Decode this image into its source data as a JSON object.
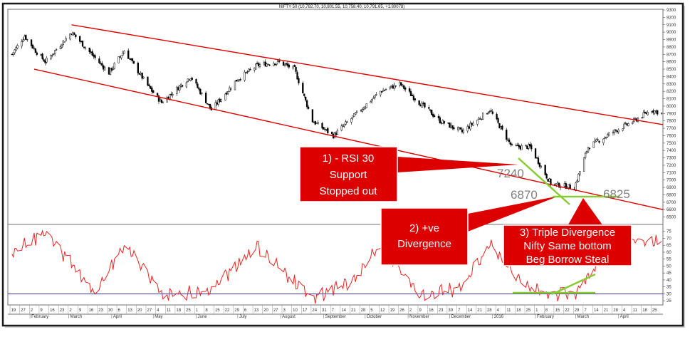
{
  "title": "NIFTY 50 (10,782.70, 10,801.55, 10,758.40, 10,791.65, +1.80078)",
  "chart_data": [
    {
      "type": "candlestick",
      "ylim": [
        6400,
        9300
      ],
      "y_ticks": [
        9300,
        9200,
        9100,
        9000,
        8900,
        8800,
        8700,
        8600,
        8500,
        8400,
        8300,
        8200,
        8100,
        8000,
        7900,
        7800,
        7700,
        7600,
        7500,
        7400,
        7300,
        7200,
        7100,
        7000,
        6900,
        6800,
        6700,
        6600,
        6500
      ],
      "approx_close_path": [
        {
          "date": "2015-01-19",
          "close": 8700
        },
        {
          "date": "2015-01-28",
          "close": 8950
        },
        {
          "date": "2015-02-05",
          "close": 8750
        },
        {
          "date": "2015-02-12",
          "close": 8600
        },
        {
          "date": "2015-03-03",
          "close": 9000
        },
        {
          "date": "2015-03-20",
          "close": 8650
        },
        {
          "date": "2015-03-30",
          "close": 8450
        },
        {
          "date": "2015-04-10",
          "close": 8750
        },
        {
          "date": "2015-04-28",
          "close": 8250
        },
        {
          "date": "2015-05-07",
          "close": 8050
        },
        {
          "date": "2015-05-28",
          "close": 8400
        },
        {
          "date": "2015-06-12",
          "close": 7950
        },
        {
          "date": "2015-06-30",
          "close": 8350
        },
        {
          "date": "2015-07-15",
          "close": 8550
        },
        {
          "date": "2015-07-30",
          "close": 8600
        },
        {
          "date": "2015-08-11",
          "close": 8500
        },
        {
          "date": "2015-08-24",
          "close": 7800
        },
        {
          "date": "2015-09-08",
          "close": 7600
        },
        {
          "date": "2015-09-22",
          "close": 7850
        },
        {
          "date": "2015-10-12",
          "close": 8200
        },
        {
          "date": "2015-10-26",
          "close": 8300
        },
        {
          "date": "2015-11-09",
          "close": 8050
        },
        {
          "date": "2015-11-24",
          "close": 7800
        },
        {
          "date": "2015-12-10",
          "close": 7650
        },
        {
          "date": "2015-12-30",
          "close": 7950
        },
        {
          "date": "2016-01-15",
          "close": 7450
        },
        {
          "date": "2016-01-28",
          "close": 7450
        },
        {
          "date": "2016-02-12",
          "close": 6950
        },
        {
          "date": "2016-02-29",
          "close": 6900
        },
        {
          "date": "2016-03-10",
          "close": 7450
        },
        {
          "date": "2016-03-28",
          "close": 7650
        },
        {
          "date": "2016-04-12",
          "close": 7800
        },
        {
          "date": "2016-04-25",
          "close": 7950
        },
        {
          "date": "2016-05-02",
          "close": 7900
        }
      ],
      "annotations": [
        {
          "type": "trendline",
          "label": "upper channel",
          "from": {
            "date": "2015-03-03",
            "close": 9100
          },
          "to": {
            "date": "2016-05-03",
            "close": 7750
          }
        },
        {
          "type": "trendline",
          "label": "lower channel",
          "from": {
            "date": "2015-02-04",
            "close": 8500
          },
          "to": {
            "date": "2016-05-03",
            "close": 6600
          }
        },
        {
          "type": "level",
          "text": "7240",
          "value": 7240
        },
        {
          "type": "level",
          "text": "6870",
          "value": 6870
        },
        {
          "type": "level",
          "text": "6825",
          "value": 6825
        }
      ]
    },
    {
      "type": "line",
      "indicator": "RSI",
      "ylim": [
        22,
        80
      ],
      "y_ticks": [
        75,
        70,
        65,
        60,
        55,
        50,
        45,
        40,
        35,
        30,
        25
      ],
      "reference_line": 30,
      "approx_path": [
        {
          "date": "2015-01-19",
          "rsi": 60
        },
        {
          "date": "2015-02-12",
          "rsi": 75
        },
        {
          "date": "2015-03-20",
          "rsi": 31
        },
        {
          "date": "2015-04-10",
          "rsi": 65
        },
        {
          "date": "2015-05-07",
          "rsi": 30
        },
        {
          "date": "2015-06-12",
          "rsi": 32
        },
        {
          "date": "2015-07-15",
          "rsi": 65
        },
        {
          "date": "2015-08-24",
          "rsi": 26
        },
        {
          "date": "2015-09-22",
          "rsi": 40
        },
        {
          "date": "2015-10-12",
          "rsi": 64
        },
        {
          "date": "2015-11-09",
          "rsi": 29
        },
        {
          "date": "2015-12-10",
          "rsi": 35
        },
        {
          "date": "2015-12-30",
          "rsi": 65
        },
        {
          "date": "2016-01-28",
          "rsi": 33
        },
        {
          "date": "2016-02-12",
          "rsi": 30
        },
        {
          "date": "2016-02-29",
          "rsi": 30
        },
        {
          "date": "2016-03-28",
          "rsi": 68
        },
        {
          "date": "2016-05-02",
          "rsi": 68
        }
      ]
    }
  ],
  "callouts": [
    {
      "lines": [
        "1) - RSI 30",
        "Support",
        "Stopped out"
      ]
    },
    {
      "lines": [
        "2) +ve",
        "Divergence"
      ]
    },
    {
      "lines": [
        "3) Triple Divergence",
        "Nifty Same bottom",
        "Beg Borrow Steal"
      ]
    }
  ],
  "x_axis": {
    "days": [
      "19",
      "27",
      "2",
      "9",
      "16",
      "23",
      "2",
      "9",
      "16",
      "23",
      "30",
      "6",
      "13",
      "20",
      "27",
      "4",
      "11",
      "18",
      "25",
      "1",
      "8",
      "15",
      "22",
      "29",
      "6",
      "13",
      "20",
      "27",
      "3",
      "10",
      "17",
      "24",
      "31",
      "7",
      "14",
      "21",
      "28",
      "5",
      "12",
      "19",
      "26",
      "2",
      "9",
      "16",
      "23",
      "30",
      "7",
      "14",
      "21",
      "28",
      "4",
      "11",
      "18",
      "25",
      "1",
      "8",
      "15",
      "22",
      "29",
      "7",
      "14",
      "21",
      "28",
      "4",
      "11",
      "18",
      "25"
    ],
    "months": [
      "February",
      "March",
      "April",
      "May",
      "June",
      "July",
      "August",
      "September",
      "October",
      "November",
      "December",
      "2016",
      "February",
      "March",
      "April"
    ]
  },
  "colors": {
    "price": "#000000",
    "trendline": "#e00000",
    "rsi": "#ee2222",
    "rsi_reference": "#1a1aa0",
    "green": "#88cc33",
    "callout": "#dd0000"
  }
}
